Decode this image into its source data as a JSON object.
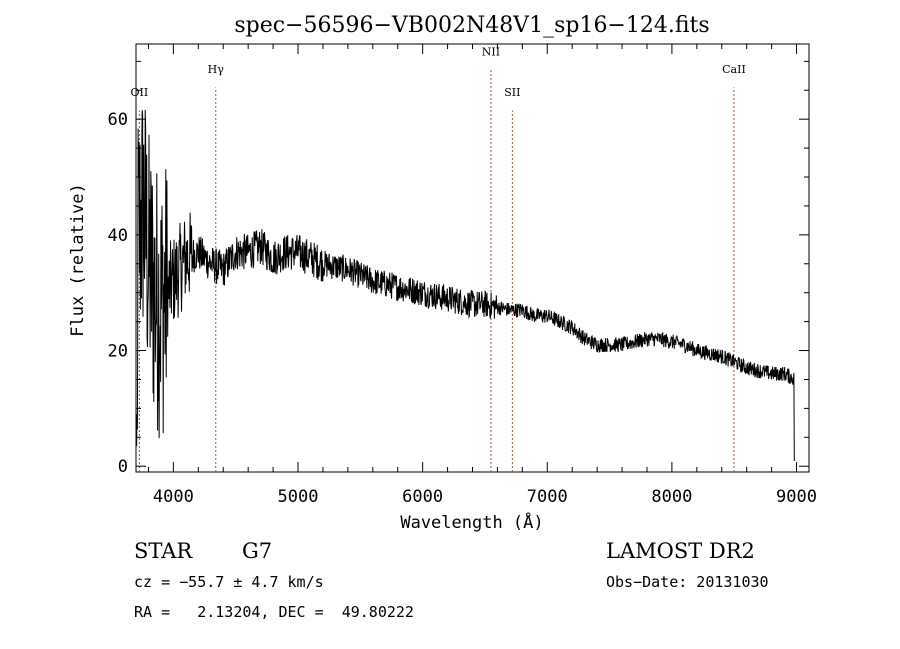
{
  "chart_data": {
    "type": "line",
    "title": "spec−56596−VB002N48V1_sp16−124.fits",
    "xlabel": "Wavelength (Å)",
    "ylabel": "Flux (relative)",
    "xlim": [
      3700,
      9100
    ],
    "ylim": [
      -1,
      73
    ],
    "x_ticks": [
      4000,
      5000,
      6000,
      7000,
      8000,
      9000
    ],
    "x_tick_labels": [
      "4000",
      "5000",
      "6000",
      "7000",
      "8000",
      "9000"
    ],
    "y_ticks": [
      0,
      20,
      40,
      60
    ],
    "y_tick_labels": [
      "0",
      "20",
      "40",
      "60"
    ],
    "line_color": "#000000",
    "marker_color": "#a0522d",
    "spectrum_anchors": {
      "x": [
        3720,
        3760,
        3800,
        3850,
        3900,
        3950,
        4000,
        4050,
        4100,
        4200,
        4300,
        4400,
        4500,
        4600,
        4700,
        4800,
        4900,
        5000,
        5200,
        5400,
        5600,
        5800,
        6000,
        6200,
        6400,
        6500,
        6600,
        6700,
        6800,
        6900,
        7000,
        7100,
        7200,
        7300,
        7400,
        7500,
        7600,
        7700,
        7800,
        7900,
        8000,
        8100,
        8200,
        8300,
        8400,
        8500,
        8600,
        8700,
        8800,
        8900,
        8990
      ],
      "y": [
        40,
        45,
        35,
        30,
        28,
        30,
        32,
        34,
        36,
        37,
        35,
        34,
        37,
        37,
        38,
        36,
        37,
        37,
        35,
        34,
        32,
        31,
        30,
        29,
        28,
        28,
        27.5,
        27,
        27,
        26,
        26,
        25,
        24,
        22,
        21,
        21,
        21,
        21.5,
        22,
        22,
        21.5,
        21,
        20,
        19.5,
        19,
        18,
        17,
        16.5,
        16,
        16,
        15
      ]
    },
    "lines": [
      {
        "label": "OII",
        "x": 3727,
        "label_y": 64
      },
      {
        "label": "Hγ",
        "x": 4340,
        "label_y": 68
      },
      {
        "label": "NII",
        "x": 6548,
        "label_y": 71
      },
      {
        "label": "SII",
        "x": 6720,
        "label_y": 64
      },
      {
        "label": "CaII",
        "x": 8498,
        "label_y": 68
      }
    ],
    "grid": false,
    "legend": "none"
  },
  "info": {
    "object_class": "STAR",
    "subclass": "G7",
    "survey": "LAMOST DR2",
    "cz": "cz = −55.7 ± 4.7 km/s",
    "obs_date": "Obs−Date: 20131030",
    "radec": "RA =   2.13204, DEC =  49.80222"
  }
}
